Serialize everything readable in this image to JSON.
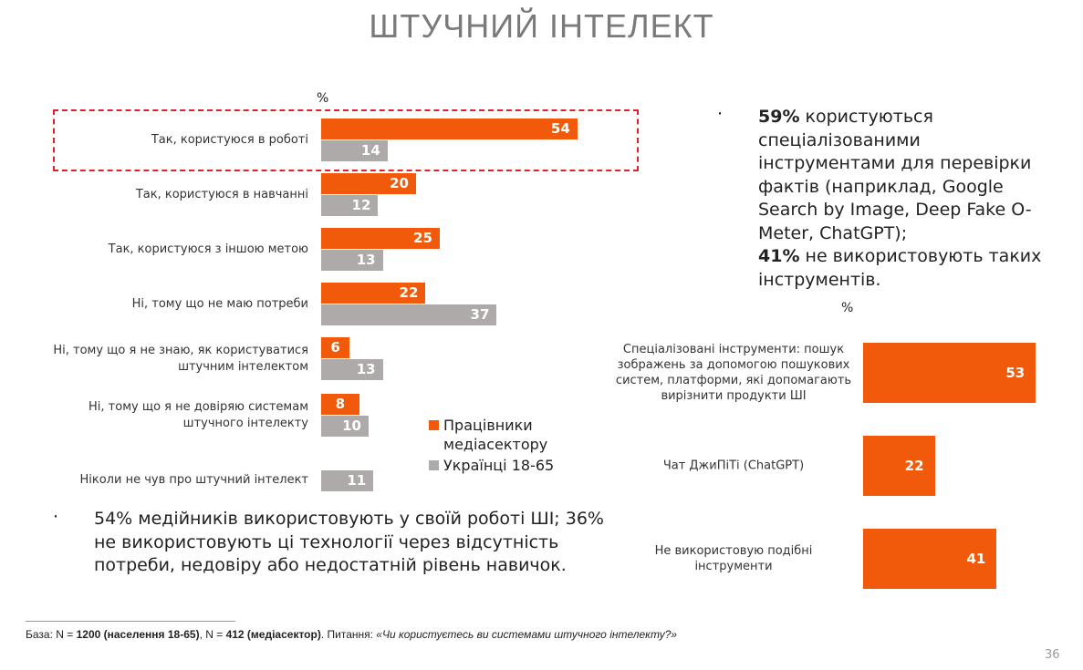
{
  "title": "ШТУЧНИЙ ІНТЕЛЕКТ",
  "colors": {
    "media": "#f05a0a",
    "ukrainians": "#aeaaa9",
    "highlight": "#e0202a"
  },
  "chart_data": [
    {
      "type": "bar",
      "orientation": "horizontal",
      "unit_label": "%",
      "categories": [
        "Так, користуюся в роботі",
        "Так, користуюся в навчанні",
        "Так, користуюся з іншою метою",
        "Ні, тому що не маю потреби",
        "Ні, тому що я не знаю, як користуватися штучним інтелектом",
        "Ні, тому що я не довіряю системам штучного інтелекту",
        "Ніколи не чув про штучний інтелект"
      ],
      "series": [
        {
          "name": "Працівники медіасектору",
          "values": [
            54,
            20,
            25,
            22,
            6,
            8,
            null
          ]
        },
        {
          "name": "Українці 18-65",
          "values": [
            14,
            12,
            13,
            37,
            13,
            10,
            11
          ]
        }
      ],
      "highlighted_category": "Так, користуюся в роботі",
      "legend_position": "bottom-right"
    },
    {
      "type": "bar",
      "orientation": "horizontal",
      "unit_label": "%",
      "categories": [
        "Спеціалізовані інструменти: пошук зображень за допомогою пошукових систем, платформи, які допомагають вирізнити продукти ШІ",
        "Чат ДжиПіТі (ChatGPT)",
        "Не використовую подібні інструменти"
      ],
      "series": [
        {
          "name": "Працівники медіасектору",
          "values": [
            53,
            22,
            41
          ]
        }
      ]
    }
  ],
  "bullets": {
    "right": {
      "b1": "59%",
      "t1": " користуються спеціалізованими інструментами для перевірки фактів (наприклад, Google Search by Image, Deep Fake O-Meter, ChatGPT);",
      "b2": "41%",
      "t2": " не використовують таких інструментів."
    },
    "bottom": "54% медійників використовують у своїй роботі ШІ; 36% не використовують ці технології через відсутність потреби, недовіру або недостатній рівень навичок."
  },
  "footer": {
    "p1": "База: N = ",
    "b1": "1200 (населення 18-65)",
    "p2": ", N = ",
    "b2": "412 (медіасектор)",
    "p3": ". Питання: ",
    "q": "«Чи користуєтесь ви системами штучного інтелекту?»"
  },
  "page_number": "36"
}
